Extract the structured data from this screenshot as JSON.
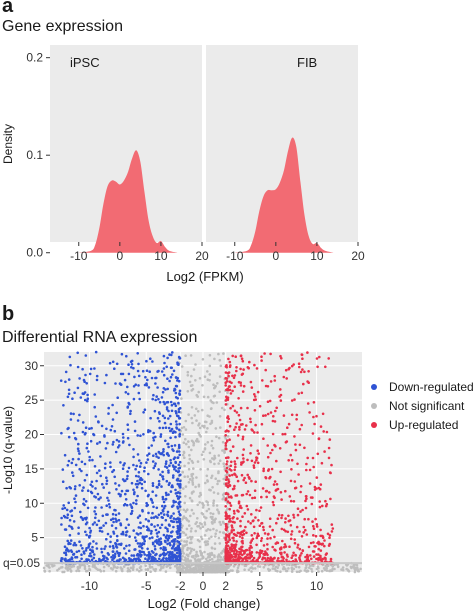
{
  "chart_data": [
    {
      "panel_letter": "a",
      "title": "Gene expression",
      "type": "area",
      "xlabel": "Log2 (FPKM)",
      "ylabel": "Density",
      "xlim": [
        -17,
        20
      ],
      "ylim": [
        0,
        0.2
      ],
      "xticks": [
        -10,
        0,
        10,
        20
      ],
      "yticks": [
        0.0,
        0.1,
        0.2
      ],
      "grid": false,
      "facets": [
        {
          "label": "iPSC",
          "fill": "#f26b73",
          "x": [
            -10,
            -7,
            -6,
            -5,
            -4,
            -3,
            -2,
            -1,
            0,
            1,
            2,
            3,
            4,
            5,
            6,
            7,
            8,
            9,
            10,
            11,
            12,
            14
          ],
          "y": [
            0,
            0.002,
            0.008,
            0.025,
            0.05,
            0.068,
            0.074,
            0.073,
            0.07,
            0.074,
            0.083,
            0.097,
            0.105,
            0.093,
            0.062,
            0.033,
            0.017,
            0.01,
            0.012,
            0.006,
            0.002,
            0
          ]
        },
        {
          "label": "FIB",
          "fill": "#f26b73",
          "x": [
            -10,
            -7,
            -6,
            -5,
            -4,
            -3,
            -2,
            -1,
            0,
            1,
            2,
            3,
            4,
            5,
            6,
            7,
            8,
            9,
            10,
            11,
            12,
            14
          ],
          "y": [
            0,
            0.002,
            0.008,
            0.022,
            0.043,
            0.058,
            0.064,
            0.064,
            0.065,
            0.072,
            0.085,
            0.105,
            0.118,
            0.108,
            0.072,
            0.038,
            0.017,
            0.009,
            0.01,
            0.005,
            0.002,
            0
          ]
        }
      ]
    },
    {
      "panel_letter": "b",
      "title": "Differential RNA expression",
      "type": "scatter",
      "xlabel": "Log2 (Fold change)",
      "ylabel": "-Log10 (q-value)",
      "xlim": [
        -14,
        14
      ],
      "ylim": [
        0,
        32
      ],
      "xticks": [
        -10,
        -5,
        -2,
        0,
        2,
        5,
        10
      ],
      "yticks": [
        5,
        10,
        15,
        20,
        25,
        30
      ],
      "threshold_label": "q=0.05",
      "threshold_y": 1.3,
      "fold_change_cutoffs": [
        -2,
        2
      ],
      "legend_position": "right",
      "series": [
        {
          "name": "Down-regulated",
          "color": "#2f53d4"
        },
        {
          "name": "Not significant",
          "color": "#bdbdbd"
        },
        {
          "name": "Up-regulated",
          "color": "#e8304a"
        }
      ]
    }
  ]
}
